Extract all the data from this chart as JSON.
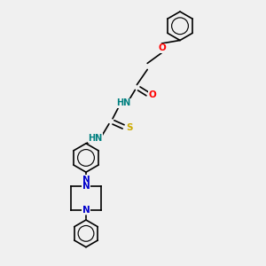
{
  "bg_color": "#f0f0f0",
  "atom_colors": {
    "N": "#0000cc",
    "O": "#ff0000",
    "S": "#ccaa00",
    "H": "#008080"
  },
  "bond_color": "#000000",
  "bond_width": 1.2,
  "fig_width": 3.0,
  "fig_height": 3.0,
  "dpi": 100,
  "xlim": [
    0,
    10
  ],
  "ylim": [
    0,
    10
  ],
  "font_size": 7.0
}
